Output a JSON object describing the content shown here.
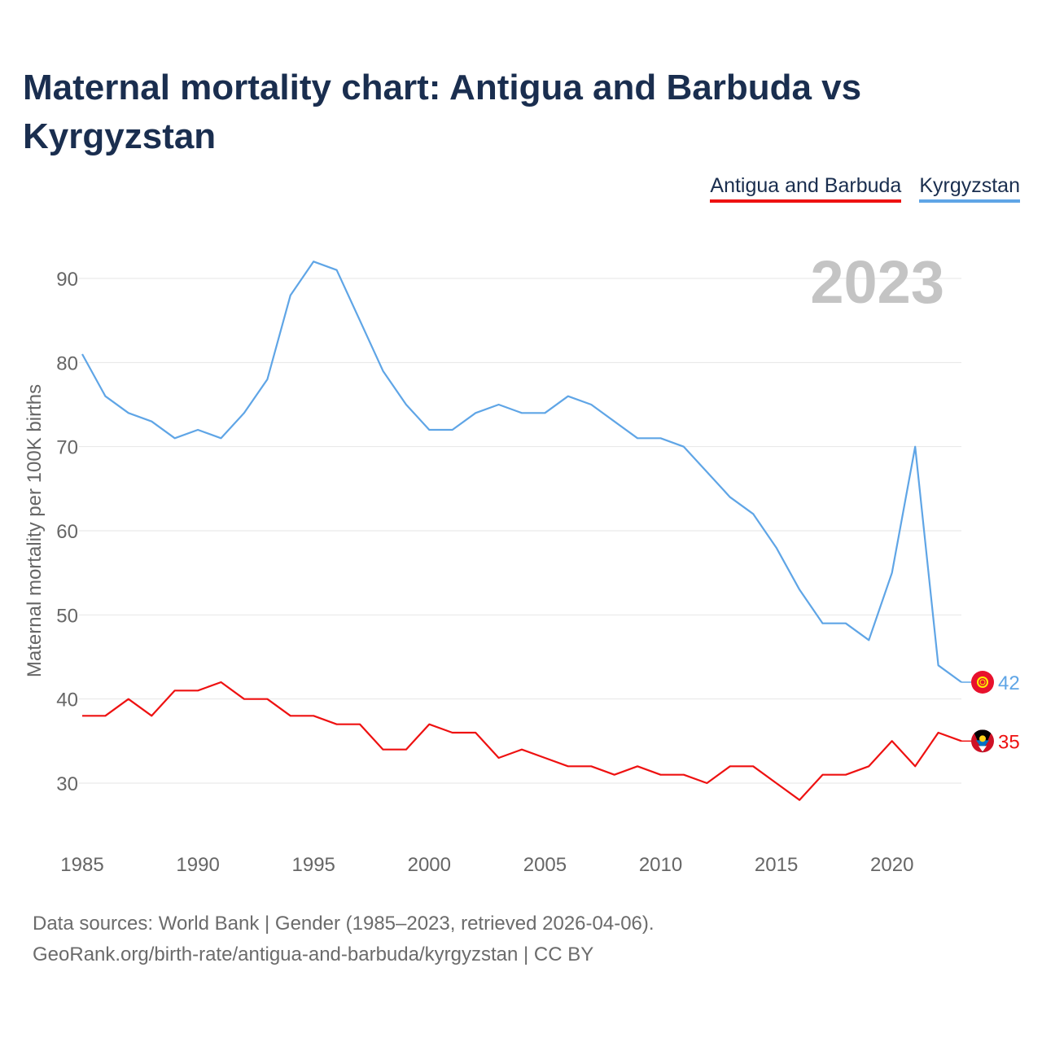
{
  "title": "Maternal mortality chart: Antigua and Barbuda vs Kyrgyzstan",
  "legend": [
    {
      "label": "Antigua and Barbuda",
      "color": "#ee1111"
    },
    {
      "label": "Kyrgyzstan",
      "color": "#5fa5e6"
    }
  ],
  "chart_data": {
    "type": "line",
    "title": "Maternal mortality chart: Antigua and Barbuda vs Kyrgyzstan",
    "xlabel": "",
    "ylabel": "Maternal mortality per 100K births",
    "year_label": "2023",
    "xlim": [
      1985,
      2023
    ],
    "ylim": [
      25,
      96
    ],
    "x_ticks": [
      1985,
      1990,
      1995,
      2000,
      2005,
      2010,
      2015,
      2020
    ],
    "y_ticks": [
      30,
      40,
      50,
      60,
      70,
      80,
      90
    ],
    "grid": true,
    "legend_position": "top-right",
    "x": [
      1985,
      1986,
      1987,
      1988,
      1989,
      1990,
      1991,
      1992,
      1993,
      1994,
      1995,
      1996,
      1997,
      1998,
      1999,
      2000,
      2001,
      2002,
      2003,
      2004,
      2005,
      2006,
      2007,
      2008,
      2009,
      2010,
      2011,
      2012,
      2013,
      2014,
      2015,
      2016,
      2017,
      2018,
      2019,
      2020,
      2021,
      2022,
      2023
    ],
    "series": [
      {
        "name": "Kyrgyzstan",
        "color": "#5fa5e6",
        "end_label": "42",
        "values": [
          81,
          76,
          74,
          73,
          71,
          72,
          71,
          74,
          78,
          88,
          92,
          91,
          85,
          79,
          75,
          72,
          72,
          74,
          75,
          74,
          74,
          76,
          75,
          73,
          71,
          71,
          70,
          67,
          64,
          62,
          58,
          53,
          49,
          49,
          47,
          55,
          70,
          44,
          42
        ]
      },
      {
        "name": "Antigua and Barbuda",
        "color": "#ee1111",
        "end_label": "35",
        "values": [
          38,
          38,
          40,
          38,
          41,
          41,
          42,
          40,
          40,
          38,
          38,
          37,
          37,
          34,
          34,
          37,
          36,
          36,
          33,
          34,
          33,
          32,
          32,
          31,
          32,
          31,
          31,
          30,
          32,
          32,
          30,
          28,
          31,
          31,
          32,
          35,
          32,
          36,
          35
        ]
      }
    ]
  },
  "sources": {
    "line1": "Data sources: World Bank | Gender (1985–2023, retrieved 2026-04-06).",
    "line2": "GeoRank.org/birth-rate/antigua-and-barbuda/kyrgyzstan | CC BY"
  }
}
